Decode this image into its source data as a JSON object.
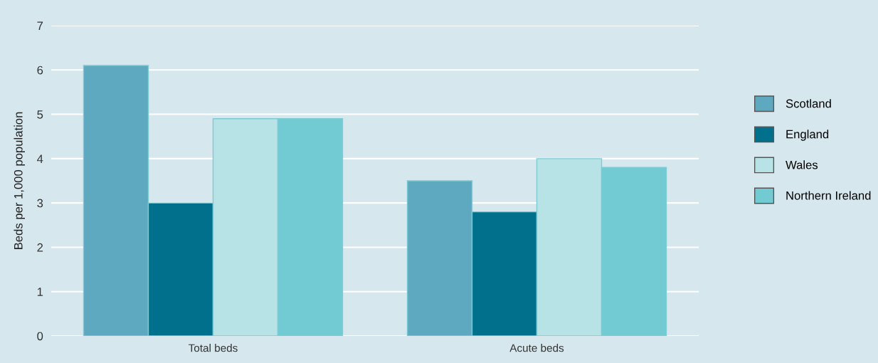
{
  "chart_data": {
    "type": "bar",
    "ylabel": "Beds per 1,000 population",
    "categories": [
      "Total beds",
      "Acute beds"
    ],
    "series": [
      {
        "name": "Scotland",
        "color": "#5ea8c0",
        "values": [
          6.1,
          3.5
        ]
      },
      {
        "name": "England",
        "color": "#00708c",
        "values": [
          3.0,
          2.8
        ]
      },
      {
        "name": "Wales",
        "color": "#b7e3e6",
        "values": [
          4.9,
          4.0
        ]
      },
      {
        "name": "Northern Ireland",
        "color": "#72cbd3",
        "values": [
          4.9,
          3.8
        ]
      }
    ],
    "ylim": [
      0,
      7
    ],
    "yticks": [
      0,
      1,
      2,
      3,
      4,
      5,
      6,
      7
    ],
    "grid": "y",
    "legend": "right"
  }
}
